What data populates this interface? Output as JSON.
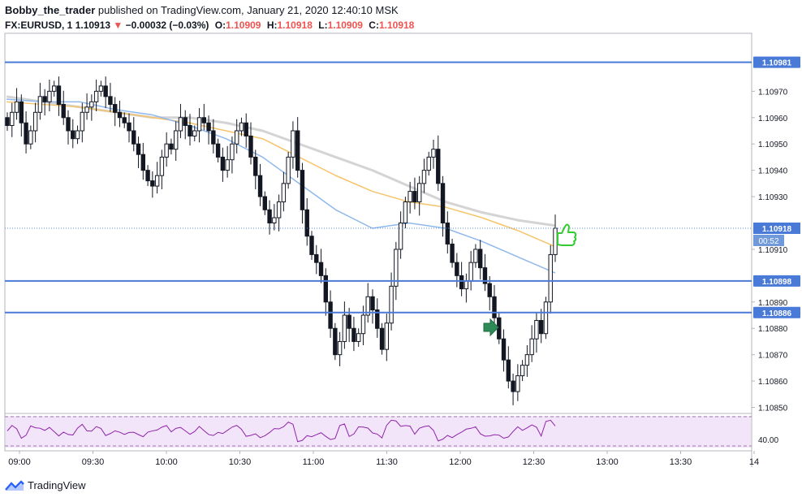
{
  "header": {
    "author": "Bobby_the_trader",
    "published": "published on TradingView.com, January 21, 2020 12:40:10 MSK",
    "symbol": "FX:EURUSD, 1",
    "last": "1.10913",
    "change": "−0.00032 (−0.03%)",
    "o_label": "O:",
    "o_value": "1.10909",
    "h_label": "H:",
    "h_value": "1.10918",
    "l_label": "L:",
    "l_value": "1.10909",
    "c_label": "C:",
    "c_value": "1.10918"
  },
  "chart_data": {
    "type": "candlestick",
    "price_ticks": [
      "1.10970",
      "1.10960",
      "1.10950",
      "1.10940",
      "1.10930",
      "1.10910",
      "1.10890",
      "1.10880",
      "1.10870",
      "1.10860",
      "1.10850"
    ],
    "time_ticks": [
      "09:00",
      "09:30",
      "10:00",
      "10:30",
      "11:00",
      "11:30",
      "12:00",
      "12:30",
      "13:00",
      "13:30",
      "14"
    ],
    "ylim": [
      1.10848,
      1.10992
    ],
    "horizontal_levels": [
      {
        "label": "1.10981",
        "value": 1.10981
      },
      {
        "label": "1.10898",
        "value": 1.10898
      },
      {
        "label": "1.10886",
        "value": 1.10886
      }
    ],
    "current_price_label": "1.10918",
    "countdown": "00:52",
    "rsi_label": "40.00",
    "closes": [
      1.10957,
      1.10962,
      1.10966,
      1.10958,
      1.1095,
      1.10955,
      1.10962,
      1.10968,
      1.10966,
      1.1097,
      1.10972,
      1.10965,
      1.1096,
      1.10955,
      1.10952,
      1.10955,
      1.10962,
      1.10964,
      1.10966,
      1.1097,
      1.10972,
      1.10968,
      1.10965,
      1.10962,
      1.1096,
      1.10958,
      1.10955,
      1.1095,
      1.10946,
      1.1094,
      1.10936,
      1.10934,
      1.10938,
      1.10945,
      1.1095,
      1.10948,
      1.10955,
      1.1096,
      1.10957,
      1.10953,
      1.10955,
      1.1096,
      1.10958,
      1.10955,
      1.1095,
      1.10945,
      1.1094,
      1.10944,
      1.1095,
      1.10955,
      1.10958,
      1.10953,
      1.10945,
      1.10938,
      1.1093,
      1.10925,
      1.1092,
      1.10922,
      1.10928,
      1.10935,
      1.10945,
      1.10955,
      1.1094,
      1.10925,
      1.10915,
      1.10908,
      1.10905,
      1.109,
      1.1089,
      1.1088,
      1.1087,
      1.10875,
      1.10885,
      1.1088,
      1.10875,
      1.10878,
      1.10885,
      1.10892,
      1.10887,
      1.1088,
      1.10872,
      1.10882,
      1.10896,
      1.1091,
      1.1092,
      1.10928,
      1.10932,
      1.10928,
      1.10935,
      1.1094,
      1.10945,
      1.10948,
      1.10935,
      1.1092,
      1.10912,
      1.10905,
      1.109,
      1.10895,
      1.10898,
      1.10905,
      1.1091,
      1.10903,
      1.10897,
      1.10892,
      1.10884,
      1.10876,
      1.10868,
      1.1086,
      1.10856,
      1.10862,
      1.10866,
      1.1087,
      1.10876,
      1.10883,
      1.10878,
      1.1089,
      1.10908,
      1.10918
    ],
    "ema_slow": [
      1.10968,
      1.10966,
      1.10964,
      1.10962,
      1.1096,
      1.1096,
      1.10958,
      1.10955,
      1.1095,
      1.10945,
      1.1094,
      1.10934,
      1.10928,
      1.10924,
      1.10921,
      1.10919
    ],
    "ema_mid": [
      1.10966,
      1.10965,
      1.10964,
      1.10962,
      1.1096,
      1.10958,
      1.10955,
      1.10952,
      1.10945,
      1.10938,
      1.10932,
      1.10928,
      1.10926,
      1.10922,
      1.10917,
      1.10911
    ],
    "ema_fast": [
      1.10967,
      1.10966,
      1.10966,
      1.10963,
      1.10961,
      1.10957,
      1.10952,
      1.10945,
      1.10935,
      1.10925,
      1.10918,
      1.1092,
      1.10918,
      1.10913,
      1.10907,
      1.10901
    ]
  },
  "footer": {
    "brand": "TradingView"
  }
}
